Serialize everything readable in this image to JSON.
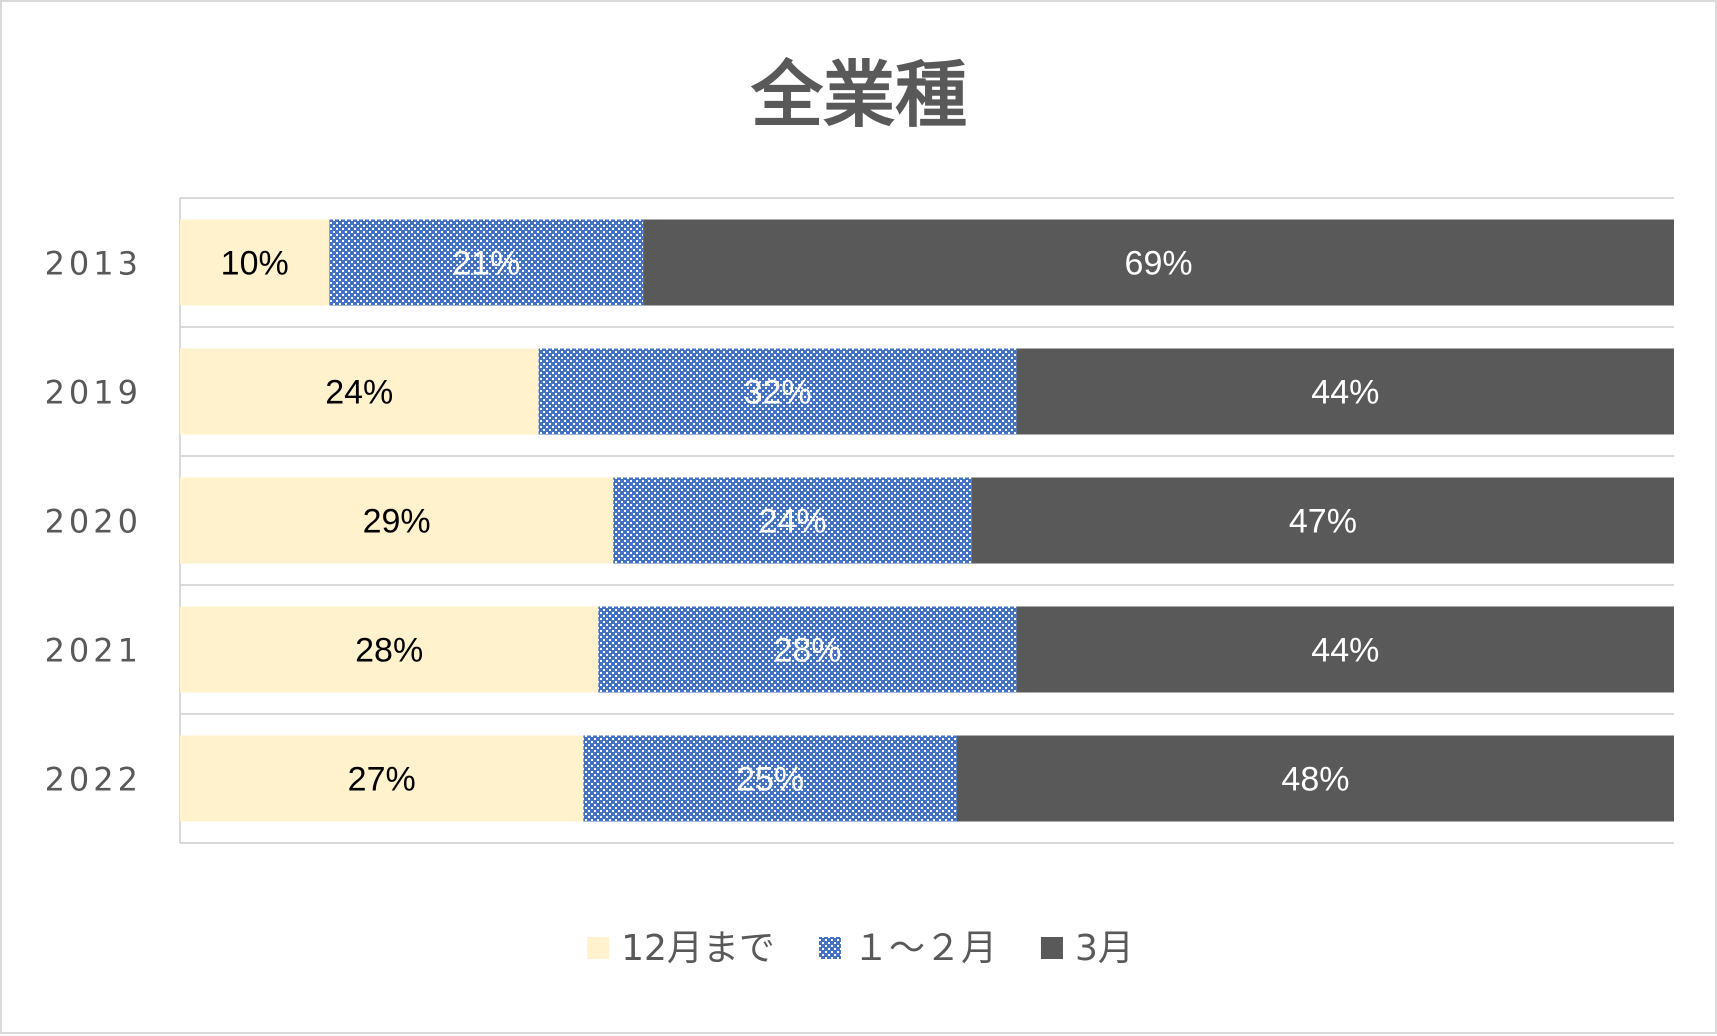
{
  "chart_data": {
    "type": "bar",
    "orientation": "horizontal",
    "stacked": "percent",
    "title": "全業種",
    "categories": [
      "2013",
      "2019",
      "2020",
      "2021",
      "2022"
    ],
    "series": [
      {
        "name": "12月まで",
        "color": "#fff2cc",
        "label_color": "#000000",
        "values": [
          10,
          24,
          29,
          28,
          27
        ],
        "labels": [
          "10%",
          "24%",
          "29%",
          "28%",
          "27%"
        ]
      },
      {
        "name": "１～２月",
        "color": "#4472c4",
        "pattern": "dotted",
        "label_color": "#ffffff",
        "values": [
          21,
          32,
          24,
          28,
          25
        ],
        "labels": [
          "21%",
          "32%",
          "24%",
          "28%",
          "25%"
        ]
      },
      {
        "name": "3月",
        "color": "#595959",
        "label_color": "#ffffff",
        "values": [
          69,
          44,
          47,
          44,
          48
        ],
        "labels": [
          "69%",
          "44%",
          "47%",
          "44%",
          "48%"
        ]
      }
    ],
    "xlim": [
      0,
      100
    ],
    "grid": true,
    "legend_position": "bottom"
  }
}
